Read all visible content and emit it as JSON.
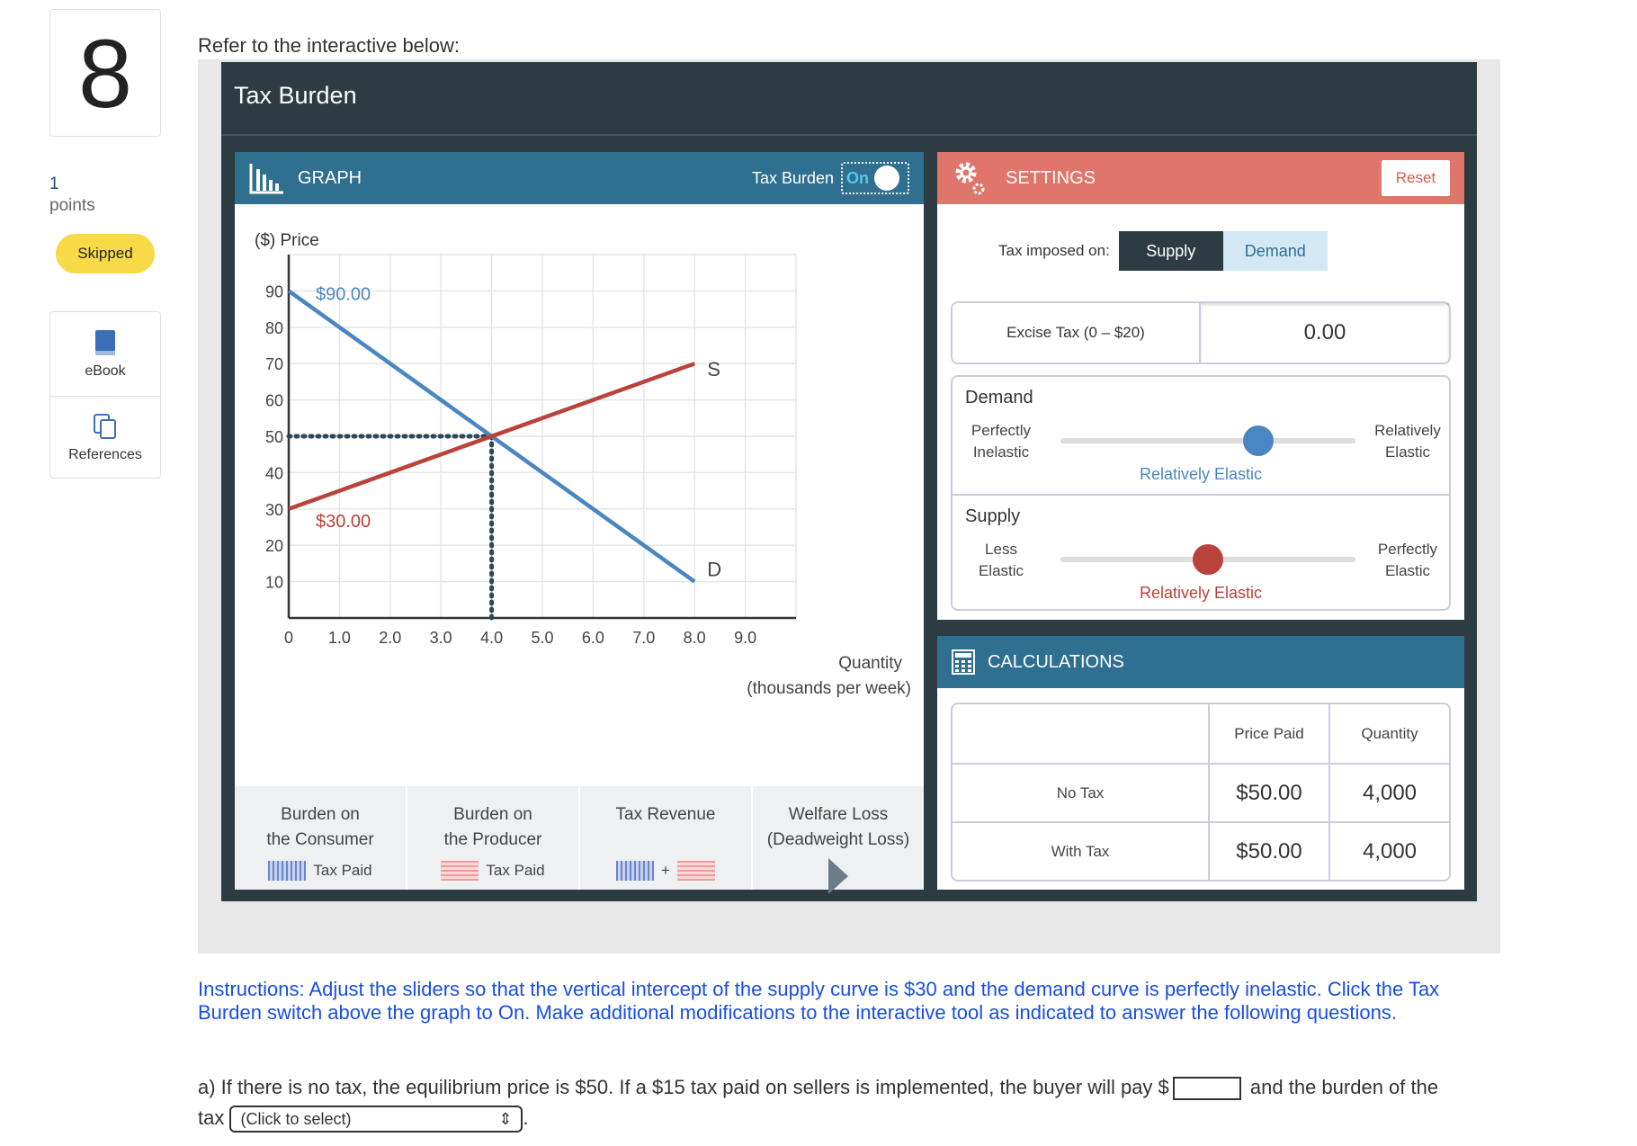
{
  "sidebar": {
    "question_number": "8",
    "points_value": "1",
    "points_label": "points",
    "status_badge": "Skipped",
    "tools": [
      {
        "label": "eBook",
        "icon": "book-icon"
      },
      {
        "label": "References",
        "icon": "copy-icon"
      }
    ]
  },
  "intro": "Refer to the interactive below:",
  "app": {
    "title": "Tax Burden",
    "graph": {
      "header": "GRAPH",
      "toggle_label": "Tax Burden",
      "toggle_value": "On"
    },
    "settings": {
      "header": "SETTINGS",
      "reset_label": "Reset",
      "tax_imposed_label": "Tax imposed on:",
      "tax_options": [
        "Supply",
        "Demand"
      ],
      "selected_option": "Supply",
      "excise_label": "Excise Tax (0 – $20)",
      "excise_value": "0.00",
      "demand": {
        "name": "Demand",
        "left_label_1": "Perfectly",
        "left_label_2": "Inelastic",
        "right_label_1": "Relatively",
        "right_label_2": "Elastic",
        "caption": "Relatively Elastic",
        "position": 0.67,
        "color": "#4a86c2"
      },
      "supply": {
        "name": "Supply",
        "left_label_1": "Less",
        "left_label_2": "Elastic",
        "right_label_1": "Perfectly",
        "right_label_2": "Elastic",
        "caption": "Relatively Elastic",
        "position": 0.5,
        "color": "#b9433a"
      }
    },
    "calculations": {
      "header": "CALCULATIONS",
      "columns": [
        "",
        "Price Paid",
        "Quantity"
      ],
      "rows": [
        {
          "label": "No Tax",
          "price": "$50.00",
          "quantity": "4,000"
        },
        {
          "label": "With Tax",
          "price": "$50.00",
          "quantity": "4,000"
        }
      ]
    },
    "burden": {
      "consumer_1": "Burden on",
      "consumer_2": "the Consumer",
      "consumer_swatch": "Tax Paid",
      "producer_1": "Burden on",
      "producer_2": "the Producer",
      "producer_swatch": "Tax Paid",
      "revenue": "Tax Revenue",
      "revenue_plus": "+",
      "welfare_1": "Welfare Loss",
      "welfare_2": "(Deadweight Loss)"
    }
  },
  "chart_data": {
    "type": "line",
    "ylabel": "($) Price",
    "xlabel_1": "Quantity",
    "xlabel_2": "(thousands per week)",
    "xlim": [
      0,
      10
    ],
    "ylim": [
      0,
      100
    ],
    "x_ticks": [
      "0",
      "1.0",
      "2.0",
      "3.0",
      "4.0",
      "5.0",
      "6.0",
      "7.0",
      "8.0",
      "9.0"
    ],
    "y_ticks": [
      "10",
      "20",
      "30",
      "40",
      "50",
      "60",
      "70",
      "80",
      "90"
    ],
    "series": [
      {
        "name": "D",
        "color": "#4a86c2",
        "x": [
          0,
          8
        ],
        "y": [
          90,
          10
        ]
      },
      {
        "name": "S",
        "color": "#b9433a",
        "x": [
          0,
          8
        ],
        "y": [
          30,
          70
        ]
      }
    ],
    "annotations": {
      "demand_intercept": "$90.00",
      "supply_intercept": "$30.00"
    },
    "equilibrium": {
      "x": 4,
      "y": 50
    }
  },
  "instructions": "Instructions: Adjust the sliders so that the vertical intercept of the supply curve is $30 and the demand curve is perfectly inelastic. Click the Tax Burden switch above the graph to On.  Make additional modifications to the interactive tool as indicated to answer the following questions.",
  "question": {
    "part1": "a) If there is no tax, the equilibrium price is $50.  If a $15 tax paid on sellers is implemented, the buyer will pay $",
    "part2": "and the burden of the tax",
    "select_placeholder": "(Click to select)",
    "end": "."
  }
}
